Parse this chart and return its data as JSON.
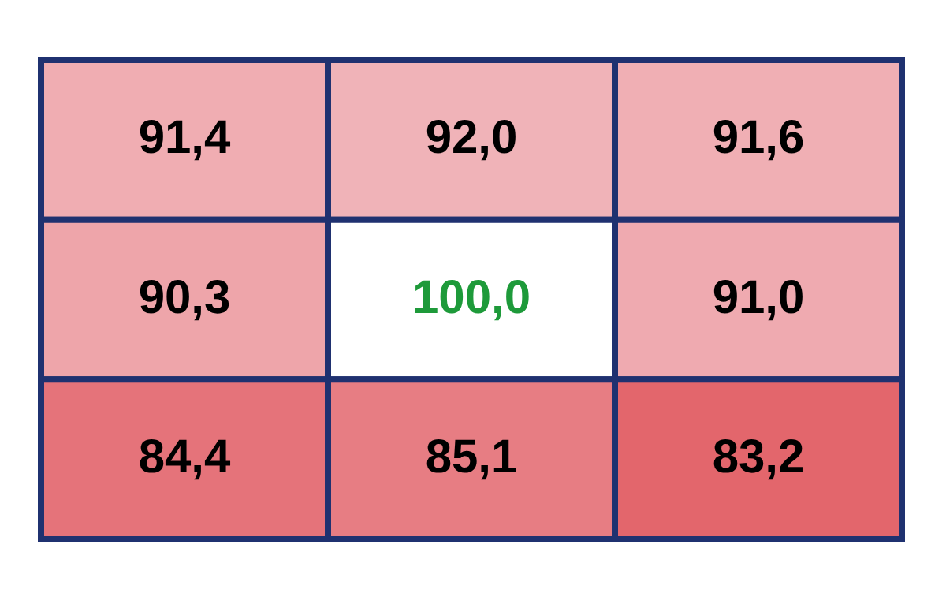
{
  "chart_data": {
    "type": "heatmap",
    "categories": [
      null,
      null,
      null
    ],
    "y_categories": [
      null,
      null,
      null
    ],
    "cells": [
      [
        91.4,
        92.0,
        91.6
      ],
      [
        90.3,
        100.0,
        91.0
      ],
      [
        84.4,
        85.1,
        83.2
      ]
    ],
    "cell_labels": [
      [
        "91,4",
        "92,0",
        "91,6"
      ],
      [
        "90,3",
        "100,0",
        "91,0"
      ],
      [
        "84,4",
        "85,1",
        "83,2"
      ]
    ],
    "colors": [
      [
        "#f0adb2",
        "#f0b3b8",
        "#f0afb4"
      ],
      [
        "#eea5aa",
        "#ffffff",
        "#efaab0"
      ],
      [
        "#e5737a",
        "#e77d83",
        "#e3666c"
      ]
    ]
  }
}
